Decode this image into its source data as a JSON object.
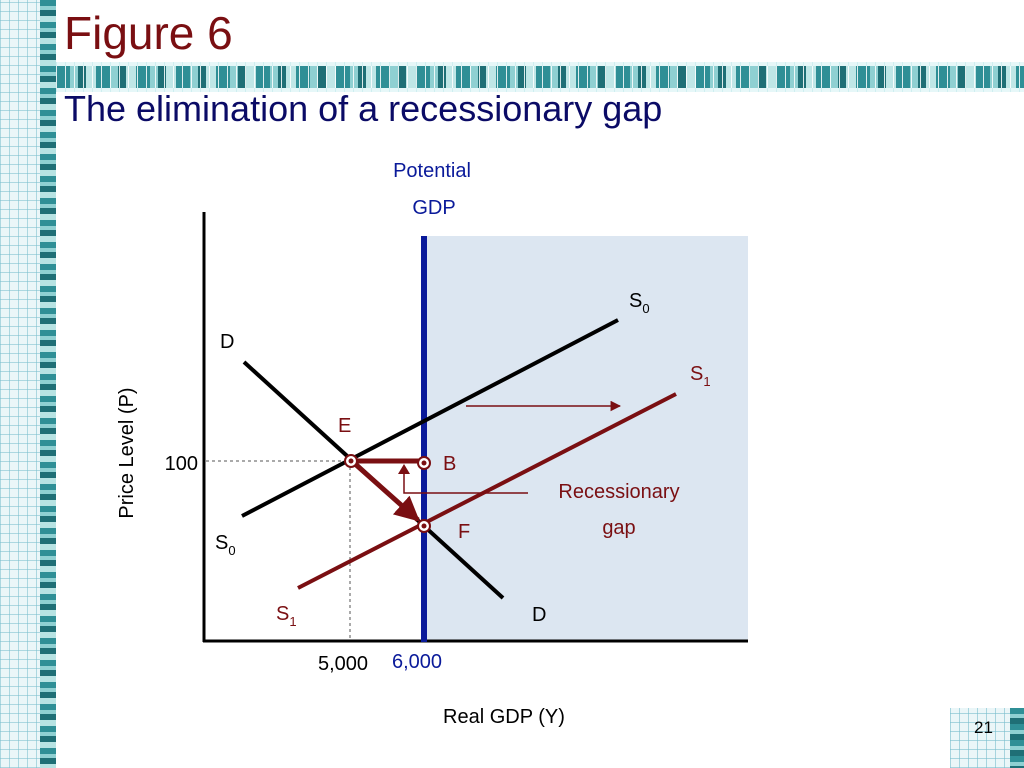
{
  "slide": {
    "title": "Figure 6",
    "subtitle": "The elimination of a recessionary gap",
    "page_number": "21"
  },
  "diagram": {
    "potential_label_line1": "Potential",
    "potential_label_line2": "GDP",
    "y_axis_label": "Price Level (P)",
    "x_axis_label": "Real GDP (Y)",
    "tick_100": "100",
    "tick_5000": "5,000",
    "tick_6000": "6,000",
    "curve_S0_top": {
      "base": "S",
      "sub": "0"
    },
    "curve_S0_bottom": {
      "base": "S",
      "sub": "0"
    },
    "curve_S1_top": {
      "base": "S",
      "sub": "1"
    },
    "curve_S1_bottom": {
      "base": "S",
      "sub": "1"
    },
    "curve_D_top": "D",
    "curve_D_bottom": "D",
    "point_E": "E",
    "point_B": "B",
    "point_F": "F",
    "gap_label_line1": "Recessionary",
    "gap_label_line2": "gap"
  },
  "colors": {
    "title": "#7a0f12",
    "subtitle": "#0b0b66",
    "potential_gdp": "#0a1a9a",
    "s1_curve": "#7a0f12",
    "shaded_region": "#dce6f1"
  }
}
